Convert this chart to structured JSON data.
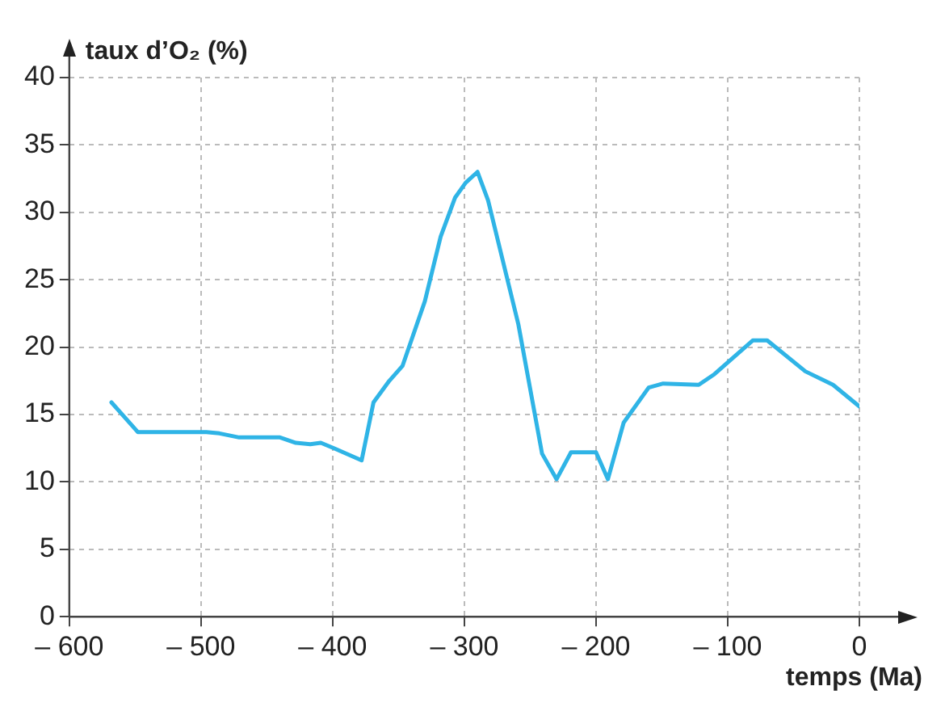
{
  "chart_data": {
    "type": "line",
    "xlabel": "temps (Ma)",
    "ylabel": "taux d’O₂ (%)",
    "x": [
      -568,
      -548,
      -530,
      -496,
      -486,
      -471,
      -440,
      -428,
      -417,
      -409,
      -399,
      -378,
      -369,
      -357,
      -347,
      -330,
      -318,
      -307,
      -299,
      -290,
      -282,
      -259,
      -241,
      -230,
      -219,
      -200,
      -191,
      -179,
      -160,
      -149,
      -122,
      -110,
      -81,
      -70,
      -41,
      -20,
      0
    ],
    "series": [
      {
        "color": "#2fb4e6",
        "values": [
          15.9,
          13.7,
          13.7,
          13.7,
          13.6,
          13.3,
          13.3,
          12.9,
          12.8,
          12.9,
          12.5,
          11.6,
          15.9,
          17.5,
          18.6,
          23.4,
          28.2,
          31.1,
          32.2,
          33.0,
          30.9,
          21.7,
          12.1,
          10.2,
          12.2,
          12.2,
          10.2,
          14.4,
          17.0,
          17.3,
          17.2,
          18.0,
          20.5,
          20.5,
          18.2,
          17.2,
          15.6
        ]
      }
    ],
    "xlim": [
      -600,
      0
    ],
    "ylim": [
      0,
      40
    ],
    "xticks": [
      {
        "value": -600,
        "label": "– 600"
      },
      {
        "value": -500,
        "label": "– 500"
      },
      {
        "value": -400,
        "label": "– 400"
      },
      {
        "value": -300,
        "label": "– 300"
      },
      {
        "value": -200,
        "label": "– 200"
      },
      {
        "value": -100,
        "label": "– 100"
      },
      0
    ],
    "yticks": [
      0,
      5,
      10,
      15,
      20,
      25,
      30,
      35,
      40
    ],
    "grid": true,
    "legend": false,
    "marker": "none",
    "line_style": "solid"
  }
}
